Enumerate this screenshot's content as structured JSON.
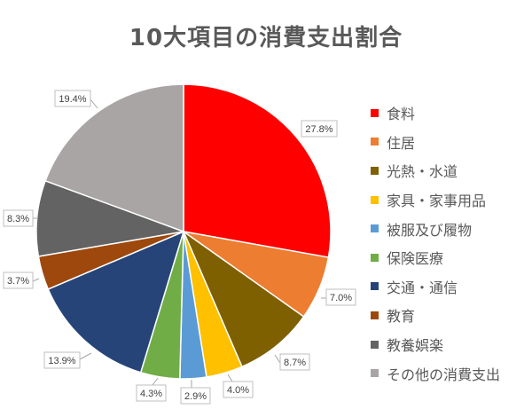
{
  "chart_data": {
    "type": "pie",
    "title": "10大項目の消費支出割合",
    "legend_position": "right",
    "slices": [
      {
        "name": "食料",
        "value": 27.8,
        "label": "27.8%",
        "color": "#FF0000"
      },
      {
        "name": "住居",
        "value": 7.0,
        "label": "7.0%",
        "color": "#ED7D31"
      },
      {
        "name": "光熱・水道",
        "value": 8.7,
        "label": "8.7%",
        "color": "#7F6000"
      },
      {
        "name": "家具・家事用品",
        "value": 4.0,
        "label": "4.0%",
        "color": "#FFC000"
      },
      {
        "name": "被服及び履物",
        "value": 2.9,
        "label": "2.9%",
        "color": "#5B9BD5"
      },
      {
        "name": "保険医療",
        "value": 4.3,
        "label": "4.3%",
        "color": "#70AD47"
      },
      {
        "name": "交通・通信",
        "value": 13.9,
        "label": "13.9%",
        "color": "#264478"
      },
      {
        "name": "教育",
        "value": 3.7,
        "label": "3.7%",
        "color": "#9E480E"
      },
      {
        "name": "教養娯楽",
        "value": 8.3,
        "label": "8.3%",
        "color": "#636363"
      },
      {
        "name": "その他の消費支出",
        "value": 19.4,
        "label": "19.4%",
        "color": "#A9A5A5"
      }
    ]
  }
}
